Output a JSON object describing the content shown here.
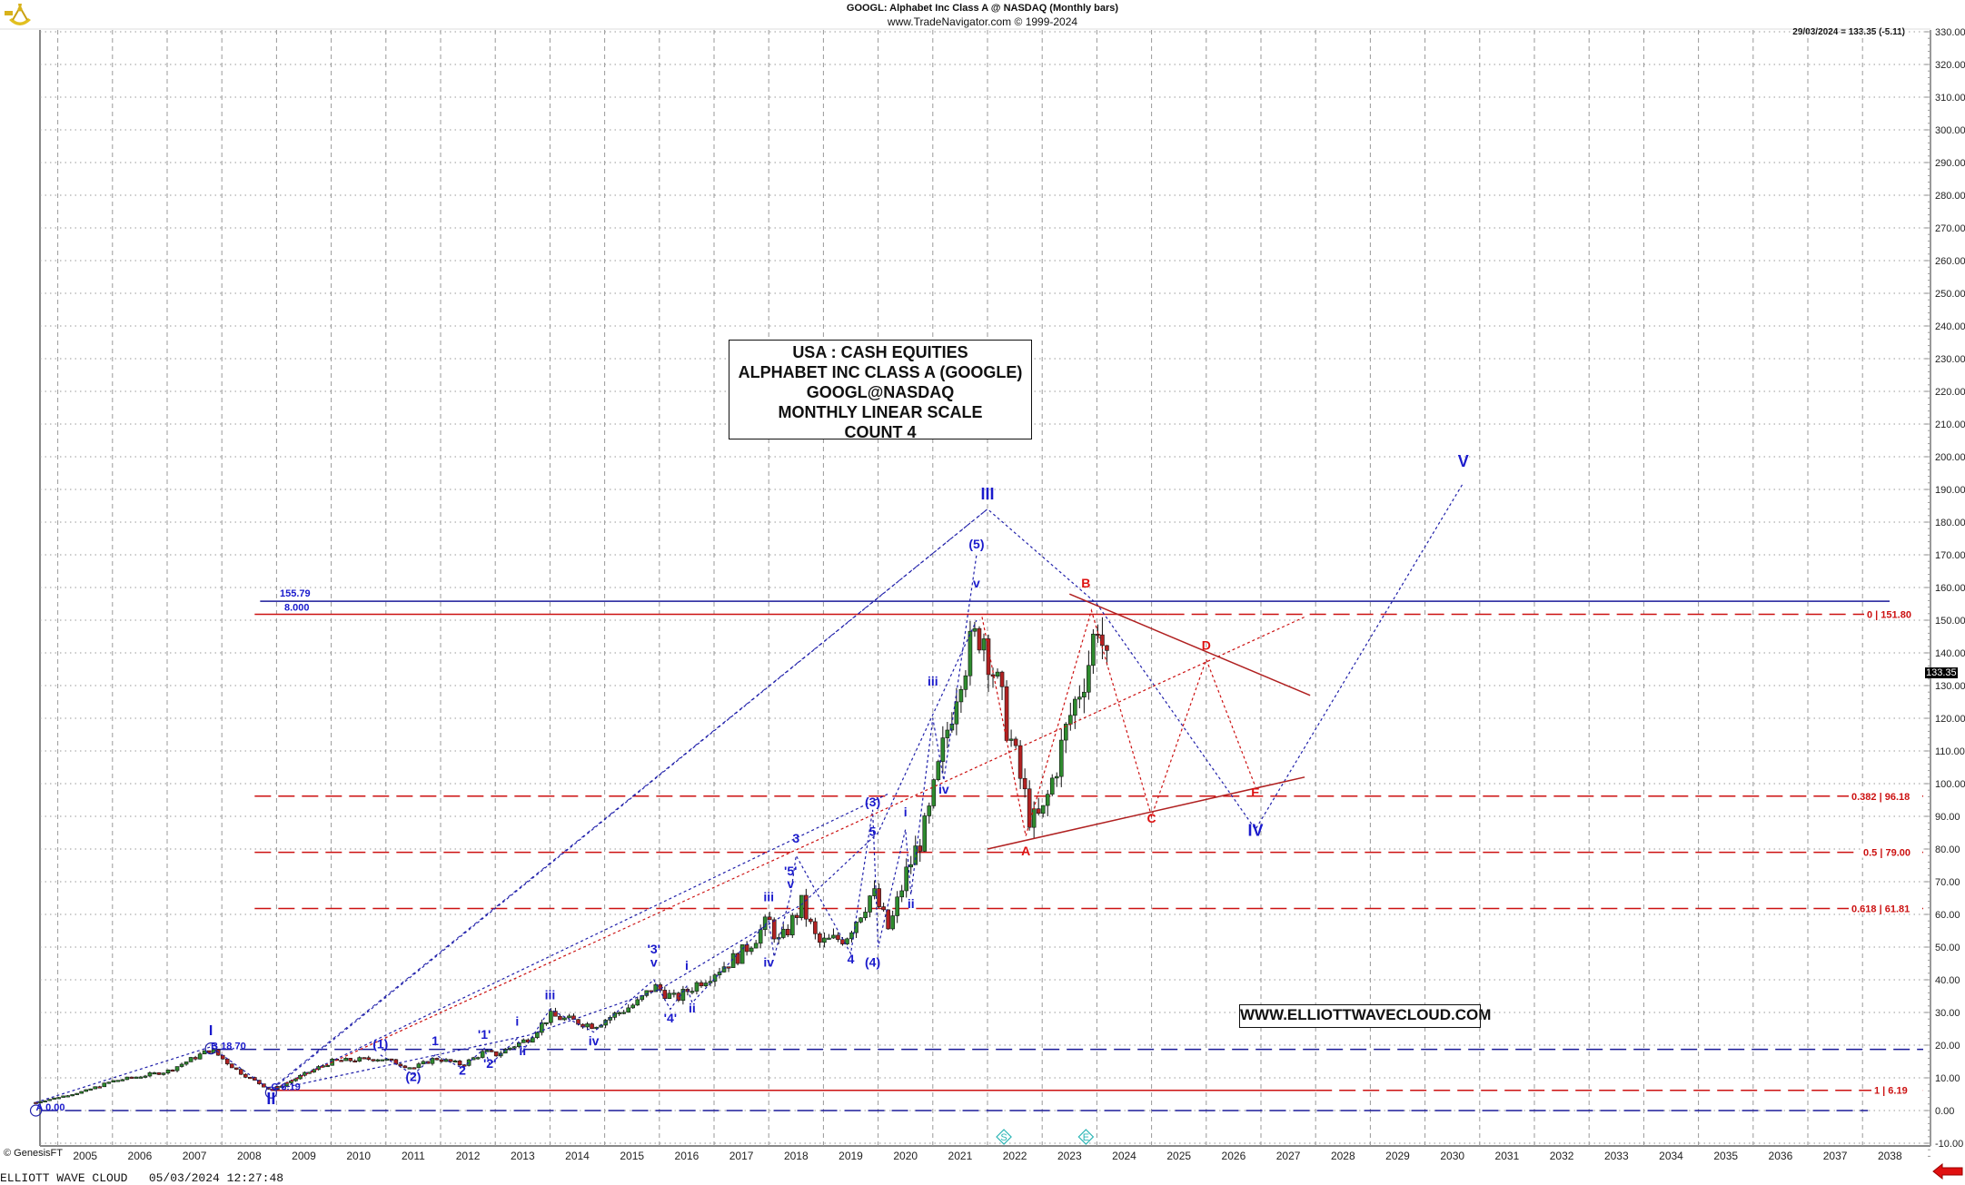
{
  "header": {
    "title": "GOOGL:  Alphabet Inc Class A @ NASDAQ  (Monthly bars)",
    "subtitle": "www.TradeNavigator.com © 1999-2024",
    "quote": "29/03/2024 = 133.35 (-5.11)"
  },
  "info_box": {
    "line1": "USA : CASH EQUITIES",
    "line2": "ALPHABET INC CLASS A (GOOGLE)",
    "line3": "GOOGL@NASDAQ",
    "line4": "MONTHLY LINEAR SCALE",
    "line5": "COUNT 4"
  },
  "website_box": "WWW.ELLIOTTWAVECLOUD.COM",
  "last_price_tag": "133.35",
  "copyright": "© GenesisFT",
  "footer": "ELLIOTT WAVE CLOUD   05/03/2024 12:27:48",
  "icons": {
    "logo": "sextant-icon",
    "nav_arrow": "left-arrow-icon"
  },
  "colors": {
    "up_candle": "#2e8b2e",
    "down_candle": "#b22222",
    "wave_blue": "#1a1acc",
    "fib_red": "#cc1111",
    "grid": "#999999",
    "marker_cyan": "#2ab5b5"
  },
  "chart_data": {
    "type": "candlestick",
    "title": "GOOGL: Alphabet Inc Class A @ NASDAQ (Monthly bars)",
    "xlabel": "",
    "ylabel": "",
    "ylim": [
      -15,
      330
    ],
    "yticks": [
      -10,
      0,
      10,
      20,
      30,
      40,
      50,
      60,
      70,
      80,
      90,
      100,
      110,
      120,
      130,
      140,
      150,
      160,
      170,
      180,
      190,
      200,
      210,
      220,
      230,
      240,
      250,
      260,
      270,
      280,
      290,
      300,
      310,
      320,
      330
    ],
    "xticks": [
      "2005",
      "2006",
      "2007",
      "2008",
      "2009",
      "2010",
      "2011",
      "2012",
      "2013",
      "2014",
      "2015",
      "2016",
      "2017",
      "2018",
      "2019",
      "2020",
      "2021",
      "2022",
      "2023",
      "2024",
      "2025",
      "2026",
      "2027",
      "2028",
      "2029",
      "2030",
      "2031",
      "2032",
      "2033",
      "2034",
      "2035",
      "2036",
      "2037",
      "2038"
    ],
    "grid": true,
    "last_value": {
      "date": "29/03/2024",
      "close": 133.35,
      "change": -5.11
    },
    "price_path_approx": [
      {
        "t": 2004.6,
        "p": 2.5
      },
      {
        "t": 2005.5,
        "p": 6
      },
      {
        "t": 2006.0,
        "p": 9
      },
      {
        "t": 2007.0,
        "p": 12
      },
      {
        "t": 2007.8,
        "p": 18.7
      },
      {
        "t": 2008.3,
        "p": 12
      },
      {
        "t": 2008.9,
        "p": 6.19
      },
      {
        "t": 2009.5,
        "p": 11
      },
      {
        "t": 2010.0,
        "p": 15
      },
      {
        "t": 2010.9,
        "p": 16
      },
      {
        "t": 2011.5,
        "p": 13
      },
      {
        "t": 2011.9,
        "p": 16
      },
      {
        "t": 2012.4,
        "p": 14
      },
      {
        "t": 2012.8,
        "p": 18
      },
      {
        "t": 2013.0,
        "p": 17
      },
      {
        "t": 2013.6,
        "p": 22
      },
      {
        "t": 2014.0,
        "p": 29
      },
      {
        "t": 2014.8,
        "p": 26
      },
      {
        "t": 2015.6,
        "p": 33
      },
      {
        "t": 2015.9,
        "p": 38
      },
      {
        "t": 2016.3,
        "p": 34
      },
      {
        "t": 2016.7,
        "p": 39
      },
      {
        "t": 2017.5,
        "p": 48
      },
      {
        "t": 2018.0,
        "p": 58
      },
      {
        "t": 2018.2,
        "p": 51
      },
      {
        "t": 2018.6,
        "p": 63
      },
      {
        "t": 2018.9,
        "p": 51
      },
      {
        "t": 2019.4,
        "p": 53
      },
      {
        "t": 2019.9,
        "p": 67
      },
      {
        "t": 2020.2,
        "p": 55
      },
      {
        "t": 2020.5,
        "p": 72
      },
      {
        "t": 2020.9,
        "p": 88
      },
      {
        "t": 2021.5,
        "p": 135
      },
      {
        "t": 2021.9,
        "p": 148
      },
      {
        "t": 2022.4,
        "p": 115
      },
      {
        "t": 2022.8,
        "p": 88
      },
      {
        "t": 2023.0,
        "p": 90
      },
      {
        "t": 2023.5,
        "p": 120
      },
      {
        "t": 2023.9,
        "p": 140
      },
      {
        "t": 2024.0,
        "p": 152
      },
      {
        "t": 2024.2,
        "p": 133.35
      }
    ],
    "horizontal_levels": [
      {
        "label": "155.79",
        "value": 155.79,
        "color": "blue",
        "style": "solid"
      },
      {
        "label": "8.000",
        "value": 151.8,
        "color": "red",
        "style": "solid"
      },
      {
        "label": "0 | 151.80",
        "value": 151.8,
        "color": "red",
        "style": "dashed"
      },
      {
        "label": "0.382 | 96.18",
        "value": 96.18,
        "color": "red",
        "style": "dashed"
      },
      {
        "label": "0.5 | 79.00",
        "value": 79.0,
        "color": "red",
        "style": "dashed"
      },
      {
        "label": "0.618 | 61.81",
        "value": 61.81,
        "color": "red",
        "style": "dashed"
      },
      {
        "label": "1 | 6.19",
        "value": 6.19,
        "color": "red",
        "style": "dashed"
      },
      {
        "label": "",
        "value": 18.7,
        "color": "blue",
        "style": "dashed"
      },
      {
        "label": "",
        "value": 0.0,
        "color": "blue",
        "style": "dashed"
      }
    ],
    "annotations": [
      {
        "label": "A 0.00",
        "t": 2004.6,
        "p": 0
      },
      {
        "label": "B 18.70",
        "t": 2007.8,
        "p": 18.7
      },
      {
        "label": "C 6.19",
        "t": 2008.9,
        "p": 6.19
      },
      {
        "label": "I",
        "t": 2007.8,
        "p": 23
      },
      {
        "label": "II",
        "t": 2008.9,
        "p": 2
      },
      {
        "label": "(1)",
        "t": 2010.9,
        "p": 19
      },
      {
        "label": "(2)",
        "t": 2011.5,
        "p": 9
      },
      {
        "label": "1",
        "t": 2011.9,
        "p": 20
      },
      {
        "label": "2",
        "t": 2012.4,
        "p": 11
      },
      {
        "label": "'1'",
        "t": 2012.8,
        "p": 22
      },
      {
        "label": "'2'",
        "t": 2012.9,
        "p": 13
      },
      {
        "label": "i",
        "t": 2013.4,
        "p": 26
      },
      {
        "label": "ii",
        "t": 2013.5,
        "p": 17
      },
      {
        "label": "iii",
        "t": 2014.0,
        "p": 34
      },
      {
        "label": "iv",
        "t": 2014.8,
        "p": 20
      },
      {
        "label": "'3'",
        "t": 2015.9,
        "p": 48
      },
      {
        "label": "v",
        "t": 2015.9,
        "p": 44
      },
      {
        "label": "'4'",
        "t": 2016.2,
        "p": 27
      },
      {
        "label": "i",
        "t": 2016.5,
        "p": 43
      },
      {
        "label": "ii",
        "t": 2016.6,
        "p": 30
      },
      {
        "label": "iii",
        "t": 2018.0,
        "p": 64
      },
      {
        "label": "iv",
        "t": 2018.0,
        "p": 44
      },
      {
        "label": "'5'",
        "t": 2018.4,
        "p": 72
      },
      {
        "label": "v",
        "t": 2018.4,
        "p": 68
      },
      {
        "label": "3",
        "t": 2018.5,
        "p": 82
      },
      {
        "label": "4",
        "t": 2019.5,
        "p": 45
      },
      {
        "label": "(3)",
        "t": 2019.9,
        "p": 93
      },
      {
        "label": "5",
        "t": 2019.9,
        "p": 84
      },
      {
        "label": "(4)",
        "t": 2019.9,
        "p": 44
      },
      {
        "label": "i",
        "t": 2020.5,
        "p": 90
      },
      {
        "label": "ii",
        "t": 2020.6,
        "p": 62
      },
      {
        "label": "iii",
        "t": 2021.0,
        "p": 130
      },
      {
        "label": "iv",
        "t": 2021.2,
        "p": 97
      },
      {
        "label": "v",
        "t": 2021.8,
        "p": 160
      },
      {
        "label": "(5)",
        "t": 2021.8,
        "p": 172
      },
      {
        "label": "III",
        "t": 2022.0,
        "p": 187
      },
      {
        "label": "A",
        "t": 2022.7,
        "p": 78
      },
      {
        "label": "B",
        "t": 2023.8,
        "p": 160
      },
      {
        "label": "C",
        "t": 2025.0,
        "p": 88
      },
      {
        "label": "D",
        "t": 2026.0,
        "p": 141
      },
      {
        "label": "E",
        "t": 2026.9,
        "p": 96
      },
      {
        "label": "IV",
        "t": 2026.9,
        "p": 84
      },
      {
        "label": "V",
        "t": 2030.7,
        "p": 197
      }
    ],
    "markers": [
      {
        "label": "S",
        "t": 2022.3
      },
      {
        "label": "E",
        "t": 2023.8
      }
    ]
  }
}
